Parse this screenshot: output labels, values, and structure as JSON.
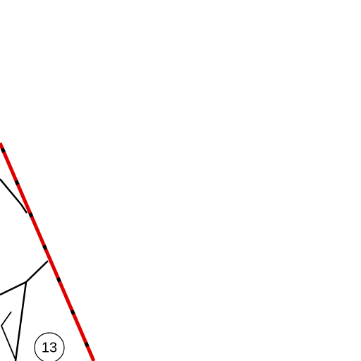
{
  "parcels": [
    {
      "label": "13"
    }
  ]
}
